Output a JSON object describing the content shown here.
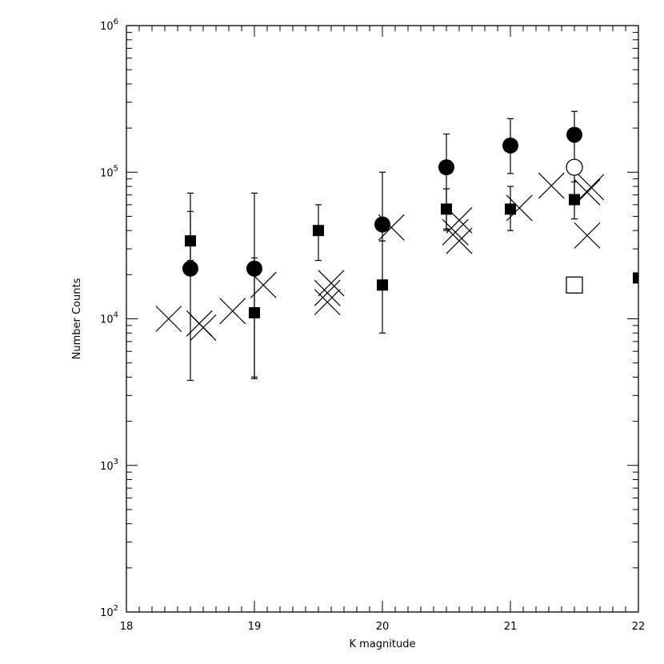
{
  "chart_data": {
    "type": "scatter",
    "title": "",
    "xlabel": "K magnitude",
    "ylabel": "Number Counts",
    "x_scale": "linear",
    "y_scale": "log",
    "xlim": [
      18,
      22
    ],
    "ylim": [
      100,
      1000000
    ],
    "x_ticks": [
      18,
      19,
      20,
      21,
      22
    ],
    "x_tick_labels": [
      "18",
      "19",
      "20",
      "21",
      "22"
    ],
    "y_ticks": [
      100,
      1000,
      10000,
      100000,
      1000000
    ],
    "y_tick_labels": [
      {
        "base": "10",
        "exp": "2"
      },
      {
        "base": "10",
        "exp": "3"
      },
      {
        "base": "10",
        "exp": "4"
      },
      {
        "base": "10",
        "exp": "5"
      },
      {
        "base": "10",
        "exp": "6"
      }
    ],
    "grid": false,
    "legend": false,
    "series": [
      {
        "marker": "filled-circle",
        "color": "#000000",
        "points": [
          {
            "x": 18.5,
            "y": 22000,
            "err": [
              3800,
              72000
            ]
          },
          {
            "x": 19.0,
            "y": 22000,
            "err": [
              3900,
              72000
            ]
          },
          {
            "x": 20.0,
            "y": 44000,
            "err": [
              34000,
              100000
            ]
          },
          {
            "x": 20.5,
            "y": 108000,
            "err": [
              41000,
              182000
            ]
          },
          {
            "x": 21.0,
            "y": 152000,
            "err": [
              98000,
              232000
            ]
          },
          {
            "x": 21.5,
            "y": 180000,
            "err": [
              62000,
              260000
            ]
          }
        ]
      },
      {
        "marker": "filled-square",
        "color": "#000000",
        "points": [
          {
            "x": 18.5,
            "y": 34000,
            "err": [
              25000,
              54000
            ]
          },
          {
            "x": 19.0,
            "y": 11000,
            "err": [
              4000,
              26000
            ]
          },
          {
            "x": 19.5,
            "y": 40000,
            "err": [
              25000,
              60000
            ]
          },
          {
            "x": 20.0,
            "y": 17000,
            "err": [
              8000,
              34000
            ]
          },
          {
            "x": 20.5,
            "y": 56000,
            "err": [
              40000,
              77000
            ]
          },
          {
            "x": 21.0,
            "y": 56000,
            "err": [
              40000,
              80000
            ]
          },
          {
            "x": 21.5,
            "y": 65000,
            "err": [
              48000,
              86000
            ]
          },
          {
            "x": 22.0,
            "y": 19000
          }
        ]
      },
      {
        "marker": "open-circle",
        "color": "#000000",
        "points": [
          {
            "x": 21.5,
            "y": 108000
          }
        ]
      },
      {
        "marker": "open-square",
        "color": "#000000",
        "points": [
          {
            "x": 21.5,
            "y": 17000
          }
        ]
      },
      {
        "marker": "cross",
        "color": "#000000",
        "points": [
          {
            "x": 18.33,
            "y": 10000
          },
          {
            "x": 18.57,
            "y": 9300
          },
          {
            "x": 18.6,
            "y": 8700
          },
          {
            "x": 18.83,
            "y": 11300
          },
          {
            "x": 19.07,
            "y": 17000
          },
          {
            "x": 19.57,
            "y": 15000
          },
          {
            "x": 19.57,
            "y": 13000
          },
          {
            "x": 19.6,
            "y": 17500
          },
          {
            "x": 20.07,
            "y": 42000
          },
          {
            "x": 20.57,
            "y": 39000
          },
          {
            "x": 20.6,
            "y": 47000
          },
          {
            "x": 20.6,
            "y": 34000
          },
          {
            "x": 21.07,
            "y": 57000
          },
          {
            "x": 21.32,
            "y": 81000
          },
          {
            "x": 21.6,
            "y": 37000
          },
          {
            "x": 21.6,
            "y": 73000
          },
          {
            "x": 21.63,
            "y": 79000
          }
        ]
      }
    ]
  }
}
